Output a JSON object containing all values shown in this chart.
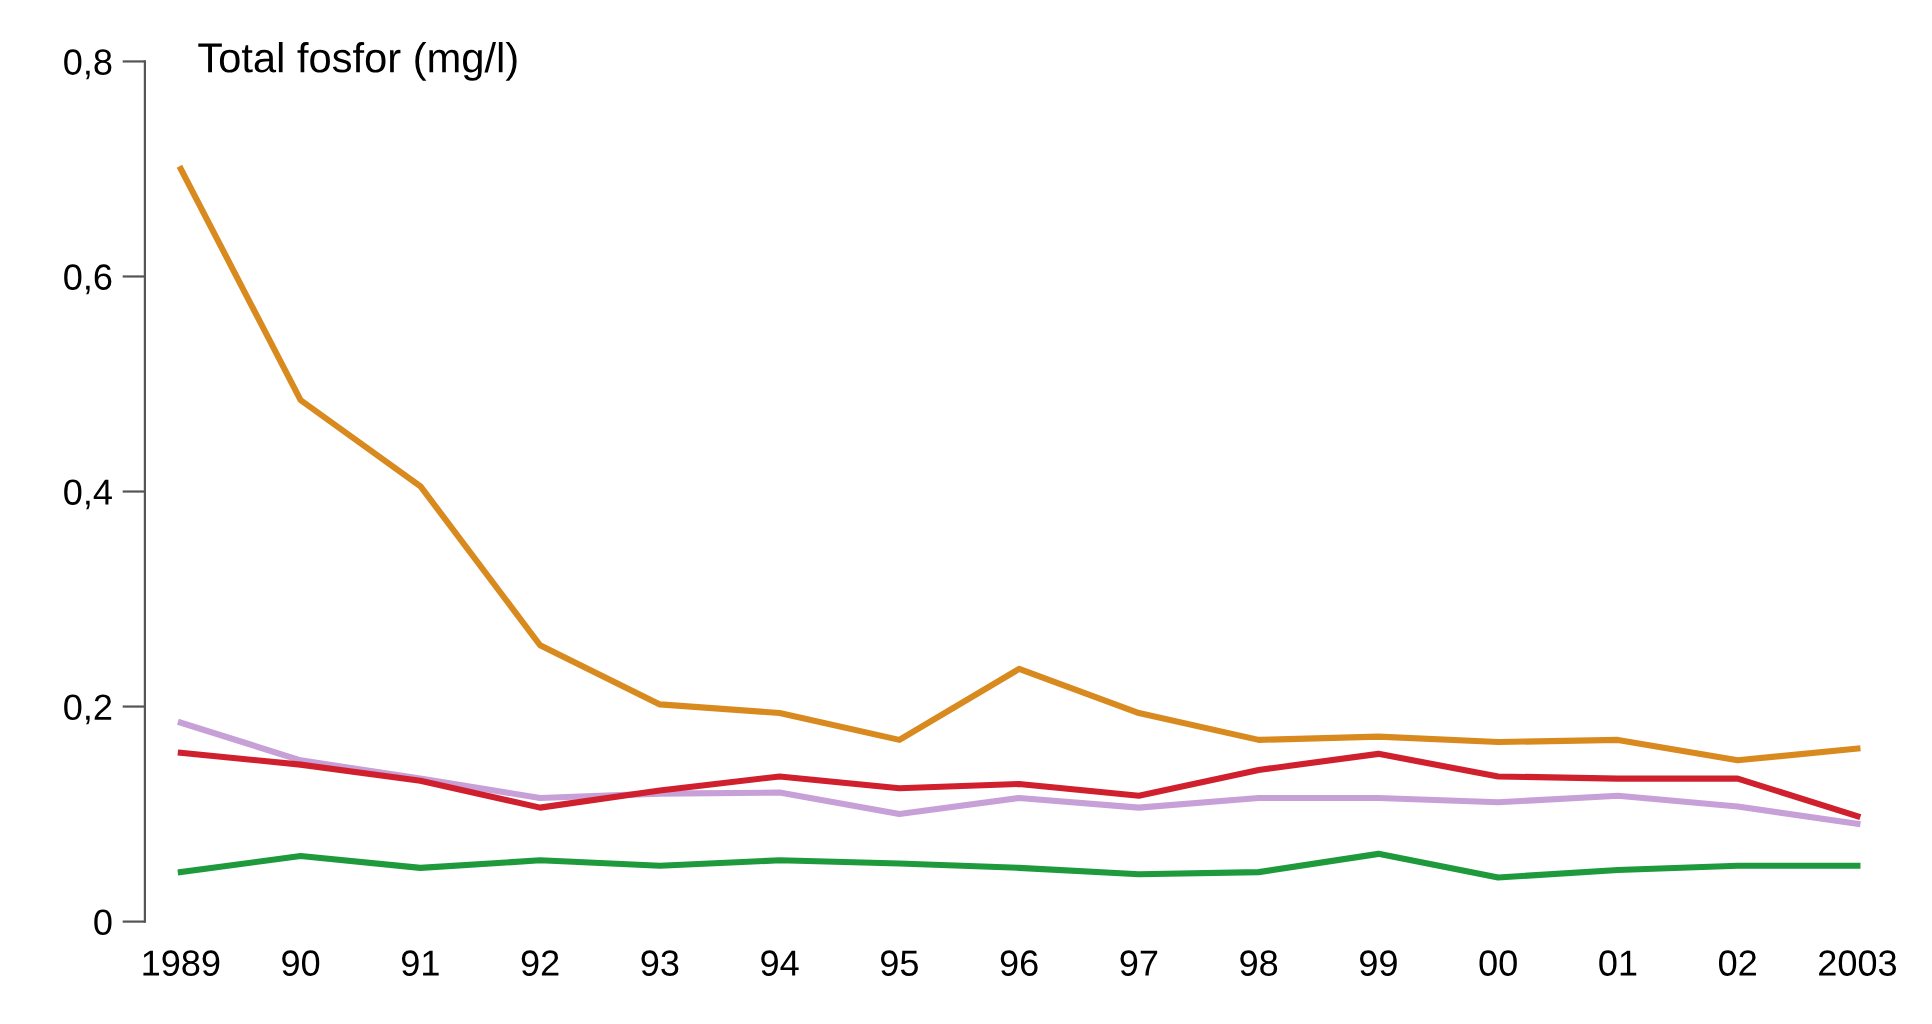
{
  "chart_data": {
    "type": "line",
    "ylabel": "Total fosfor (mg/l)",
    "categories": [
      "1989",
      "90",
      "91",
      "92",
      "93",
      "94",
      "95",
      "96",
      "97",
      "98",
      "99",
      "00",
      "01",
      "02",
      "2003"
    ],
    "series": [
      {
        "color": "#d98a1f",
        "values": [
          0.7,
          0.485,
          0.405,
          0.257,
          0.202,
          0.194,
          0.169,
          0.235,
          0.194,
          0.169,
          0.172,
          0.167,
          0.169,
          0.15,
          0.161
        ]
      },
      {
        "color": "#c8a0d8",
        "values": [
          0.185,
          0.15,
          0.133,
          0.115,
          0.119,
          0.12,
          0.1,
          0.115,
          0.106,
          0.115,
          0.115,
          0.111,
          0.117,
          0.107,
          0.091
        ]
      },
      {
        "color": "#d0202e",
        "values": [
          0.157,
          0.146,
          0.131,
          0.106,
          0.122,
          0.135,
          0.124,
          0.128,
          0.117,
          0.141,
          0.156,
          0.135,
          0.133,
          0.133,
          0.098
        ]
      },
      {
        "color": "#1e9a3c",
        "values": [
          0.046,
          0.061,
          0.05,
          0.057,
          0.052,
          0.057,
          0.054,
          0.05,
          0.044,
          0.046,
          0.063,
          0.041,
          0.048,
          0.052,
          0.052
        ]
      }
    ],
    "ylim": [
      0,
      0.8
    ],
    "yticks": [
      {
        "value": 0,
        "label": "0"
      },
      {
        "value": 0.2,
        "label": "0,2"
      },
      {
        "value": 0.4,
        "label": "0,4"
      },
      {
        "value": 0.6,
        "label": "0,6"
      },
      {
        "value": 0.8,
        "label": "0,8"
      }
    ],
    "grid": false,
    "legend": false,
    "marker": "none",
    "line_style": "solid"
  }
}
